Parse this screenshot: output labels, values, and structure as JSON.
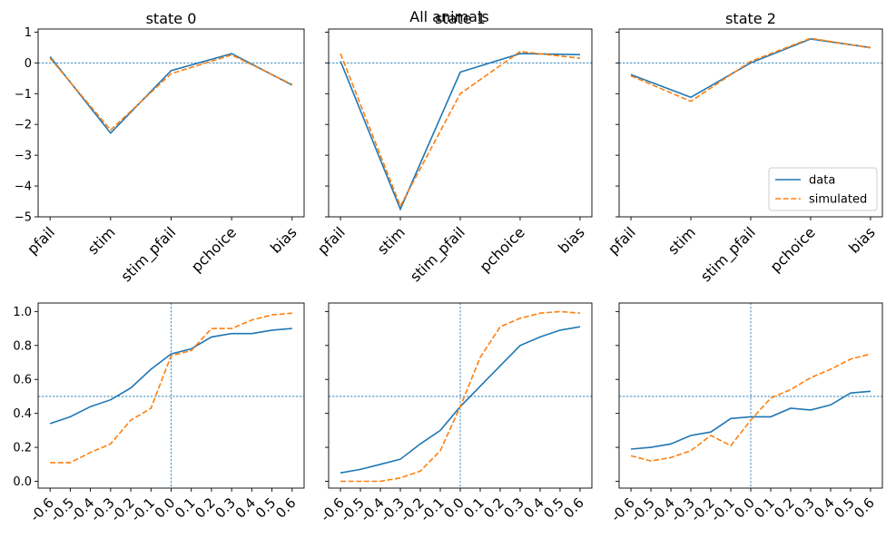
{
  "figure": {
    "suptitle": "All animals"
  },
  "colors": {
    "data": "#1f77b4",
    "simulated": "#ff7f0e",
    "refline": "#1f77b4"
  },
  "legend": {
    "panel": 2,
    "placement": "lower-right",
    "entries": [
      "data",
      "simulated"
    ]
  },
  "chart_data": [
    {
      "type": "line",
      "title": "state 0",
      "categories": [
        "pfail",
        "stim",
        "stim_pfail",
        "pchoice",
        "bias"
      ],
      "ylim": [
        -5,
        1.1
      ],
      "yticks": [
        -5,
        -4,
        -3,
        -2,
        -1,
        0,
        1
      ],
      "hline": 0,
      "series": [
        {
          "name": "data",
          "style": "solid",
          "values": [
            0.2,
            -2.28,
            -0.25,
            0.3,
            -0.72
          ]
        },
        {
          "name": "simulated",
          "style": "dashed",
          "values": [
            0.15,
            -2.18,
            -0.35,
            0.26,
            -0.7
          ]
        }
      ]
    },
    {
      "type": "line",
      "title": "state 1",
      "categories": [
        "pfail",
        "stim",
        "stim_pfail",
        "pchoice",
        "bias"
      ],
      "ylim": [
        -5,
        1.1
      ],
      "yticks": [
        -5,
        -4,
        -3,
        -2,
        -1,
        0,
        1
      ],
      "hline": 0,
      "series": [
        {
          "name": "data",
          "style": "solid",
          "values": [
            0.05,
            -4.75,
            -0.3,
            0.3,
            0.27
          ]
        },
        {
          "name": "simulated",
          "style": "dashed",
          "values": [
            0.3,
            -4.65,
            -1.0,
            0.37,
            0.15
          ]
        }
      ]
    },
    {
      "type": "line",
      "title": "state 2",
      "categories": [
        "pfail",
        "stim",
        "stim_pfail",
        "pchoice",
        "bias"
      ],
      "ylim": [
        -5,
        1.1
      ],
      "yticks": [
        -5,
        -4,
        -3,
        -2,
        -1,
        0,
        1
      ],
      "hline": 0,
      "series": [
        {
          "name": "data",
          "style": "solid",
          "values": [
            -0.38,
            -1.12,
            0.0,
            0.78,
            0.5
          ]
        },
        {
          "name": "simulated",
          "style": "dashed",
          "values": [
            -0.42,
            -1.25,
            0.05,
            0.8,
            0.49
          ]
        }
      ]
    },
    {
      "type": "line",
      "title": "",
      "x": [
        -0.6,
        -0.5,
        -0.4,
        -0.3,
        -0.2,
        -0.1,
        0.0,
        0.1,
        0.2,
        0.3,
        0.4,
        0.5,
        0.6
      ],
      "xtick_labels": [
        "-0.6",
        "-0.5",
        "-0.4",
        "-0.3",
        "-0.2",
        "-0.1",
        "0.0",
        "0.1",
        "0.2",
        "0.3",
        "0.4",
        "0.5",
        "0.6"
      ],
      "ylim": [
        -0.04,
        1.05
      ],
      "yticks": [
        0.0,
        0.2,
        0.4,
        0.6,
        0.8,
        1.0
      ],
      "hline": 0.5,
      "vline": 0.0,
      "series": [
        {
          "name": "data",
          "style": "solid",
          "values": [
            0.34,
            0.38,
            0.44,
            0.48,
            0.55,
            0.66,
            0.75,
            0.78,
            0.85,
            0.87,
            0.87,
            0.89,
            0.9
          ]
        },
        {
          "name": "simulated",
          "style": "dashed",
          "values": [
            0.11,
            0.11,
            0.17,
            0.22,
            0.36,
            0.43,
            0.74,
            0.77,
            0.9,
            0.9,
            0.95,
            0.98,
            0.99
          ]
        }
      ]
    },
    {
      "type": "line",
      "title": "",
      "x": [
        -0.6,
        -0.5,
        -0.4,
        -0.3,
        -0.2,
        -0.1,
        0.0,
        0.1,
        0.2,
        0.3,
        0.4,
        0.5,
        0.6
      ],
      "xtick_labels": [
        "-0.6",
        "-0.5",
        "-0.4",
        "-0.3",
        "-0.2",
        "-0.1",
        "0.0",
        "0.1",
        "0.2",
        "0.3",
        "0.4",
        "0.5",
        "0.6"
      ],
      "ylim": [
        -0.04,
        1.05
      ],
      "yticks": [
        0.0,
        0.2,
        0.4,
        0.6,
        0.8,
        1.0
      ],
      "hline": 0.5,
      "vline": 0.0,
      "series": [
        {
          "name": "data",
          "style": "solid",
          "values": [
            0.05,
            0.07,
            0.1,
            0.13,
            0.22,
            0.3,
            0.44,
            0.56,
            0.68,
            0.8,
            0.85,
            0.89,
            0.91
          ]
        },
        {
          "name": "simulated",
          "style": "dashed",
          "values": [
            0.0,
            0.0,
            0.0,
            0.02,
            0.06,
            0.18,
            0.44,
            0.73,
            0.91,
            0.96,
            0.99,
            1.0,
            0.99
          ]
        }
      ]
    },
    {
      "type": "line",
      "title": "",
      "x": [
        -0.6,
        -0.5,
        -0.4,
        -0.3,
        -0.2,
        -0.1,
        0.0,
        0.1,
        0.2,
        0.3,
        0.4,
        0.5,
        0.6
      ],
      "xtick_labels": [
        "-0.6",
        "-0.5",
        "-0.4",
        "-0.3",
        "-0.2",
        "-0.1",
        "0.0",
        "0.1",
        "0.2",
        "0.3",
        "0.4",
        "0.5",
        "0.6"
      ],
      "ylim": [
        -0.04,
        1.05
      ],
      "yticks": [
        0.0,
        0.2,
        0.4,
        0.6,
        0.8,
        1.0
      ],
      "hline": 0.5,
      "vline": 0.0,
      "series": [
        {
          "name": "data",
          "style": "solid",
          "values": [
            0.19,
            0.2,
            0.22,
            0.27,
            0.29,
            0.37,
            0.38,
            0.38,
            0.43,
            0.42,
            0.45,
            0.52,
            0.53
          ]
        },
        {
          "name": "simulated",
          "style": "dashed",
          "values": [
            0.15,
            0.12,
            0.14,
            0.18,
            0.27,
            0.21,
            0.36,
            0.49,
            0.54,
            0.61,
            0.66,
            0.72,
            0.75
          ]
        }
      ]
    }
  ]
}
